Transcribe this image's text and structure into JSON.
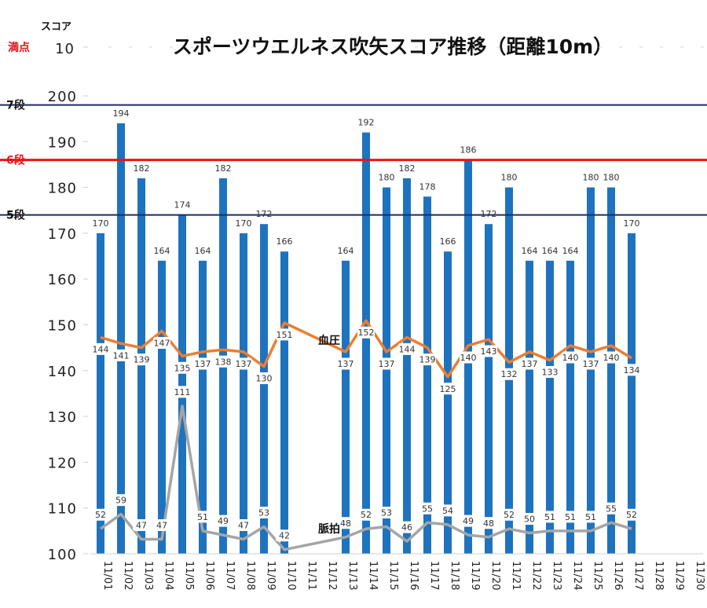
{
  "colors": {
    "bar": "#1e73be",
    "blood_pressure_line": "#ed7d31",
    "pulse_line": "#a5a5a5",
    "ref_dan": "#1f2a6b",
    "ref_red": "#e8141b"
  },
  "chart_data": {
    "type": "bar",
    "title": "スポーツウエルネス吹矢スコア推移（距離10m）",
    "y_unit_label": "スコア",
    "y_axis": {
      "ylim": [
        100,
        200
      ],
      "ticks": [
        100,
        110,
        120,
        130,
        140,
        150,
        160,
        170,
        180,
        190,
        200
      ],
      "top_tick_label": "10",
      "top_label_marker": "満点",
      "grid": false
    },
    "categories": [
      "11/01",
      "11/02",
      "11/03",
      "11/04",
      "11/05",
      "11/06",
      "11/07",
      "11/08",
      "11/09",
      "11/10",
      "11/11",
      "11/12",
      "11/13",
      "11/14",
      "11/15",
      "11/16",
      "11/17",
      "11/18",
      "11/19",
      "11/20",
      "11/21",
      "11/22",
      "11/23",
      "11/24",
      "11/25",
      "11/26",
      "11/27",
      "11/28",
      "11/29",
      "11/30"
    ],
    "series": [
      {
        "kind": "bar",
        "values": [
          170,
          194,
          182,
          164,
          174,
          164,
          182,
          170,
          172,
          166,
          null,
          null,
          164,
          192,
          180,
          182,
          178,
          166,
          186,
          172,
          180,
          164,
          164,
          164,
          180,
          180,
          170,
          null,
          null,
          null
        ]
      },
      {
        "kind": "line",
        "name": "血圧",
        "values": [
          144,
          141,
          139,
          147,
          135,
          137,
          138,
          137,
          130,
          151,
          null,
          null,
          137,
          152,
          137,
          144,
          139,
          125,
          140,
          143,
          132,
          137,
          133,
          140,
          137,
          140,
          134,
          null,
          null,
          null
        ]
      },
      {
        "kind": "line",
        "name": "脈拍",
        "values": [
          52,
          59,
          47,
          47,
          111,
          51,
          49,
          47,
          53,
          42,
          null,
          null,
          48,
          52,
          53,
          46,
          55,
          54,
          49,
          48,
          52,
          50,
          51,
          51,
          51,
          55,
          52,
          null,
          null,
          null
        ]
      }
    ],
    "reference_lines": [
      {
        "label": "7段",
        "value": 198
      },
      {
        "label": "6段",
        "value": 186
      },
      {
        "label": "5段",
        "value": 174
      }
    ]
  }
}
